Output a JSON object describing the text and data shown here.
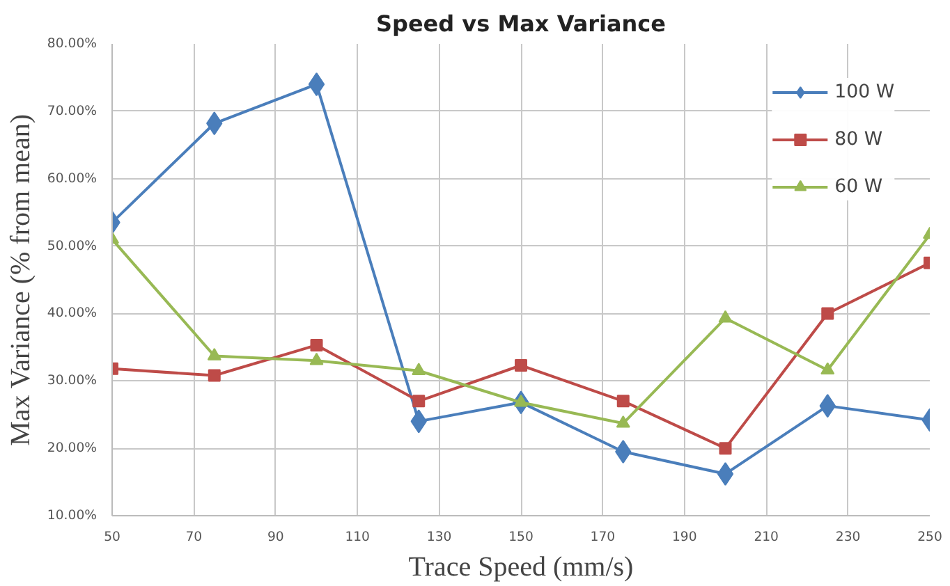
{
  "chart_data": {
    "type": "line",
    "title": "Speed vs Max Variance",
    "xlabel": "Trace Speed (mm/s)",
    "ylabel": "Max Variance (% from mean)",
    "x": [
      50,
      75,
      100,
      125,
      150,
      175,
      200,
      225,
      250
    ],
    "series": [
      {
        "name": "100 W",
        "color": "#4a7ebb",
        "marker": "diamond",
        "values": [
          53.5,
          68.2,
          74.0,
          24.0,
          26.8,
          19.5,
          16.2,
          26.3,
          24.2
        ]
      },
      {
        "name": "80 W",
        "color": "#be4b48",
        "marker": "square",
        "values": [
          31.8,
          30.8,
          35.3,
          27.0,
          32.3,
          27.0,
          20.0,
          40.0,
          47.5
        ]
      },
      {
        "name": "60 W",
        "color": "#98b954",
        "marker": "triangle",
        "values": [
          51.0,
          33.7,
          33.0,
          31.5,
          26.8,
          23.7,
          39.3,
          31.6,
          51.7
        ]
      }
    ],
    "xlim": [
      50,
      250
    ],
    "xticks": [
      50,
      70,
      90,
      110,
      130,
      150,
      170,
      190,
      210,
      230,
      250
    ],
    "ylim": [
      10,
      80
    ],
    "yticks": [
      {
        "value": 10,
        "label": "10.00%"
      },
      {
        "value": 20,
        "label": "20.00%"
      },
      {
        "value": 30,
        "label": "30.00%"
      },
      {
        "value": 40,
        "label": "40.00%"
      },
      {
        "value": 50,
        "label": "50.00%"
      },
      {
        "value": 60,
        "label": "60.00%"
      },
      {
        "value": 70,
        "label": "70.00%"
      },
      {
        "value": 80,
        "label": "80.00%"
      }
    ],
    "grid": true,
    "legend": "top right"
  }
}
